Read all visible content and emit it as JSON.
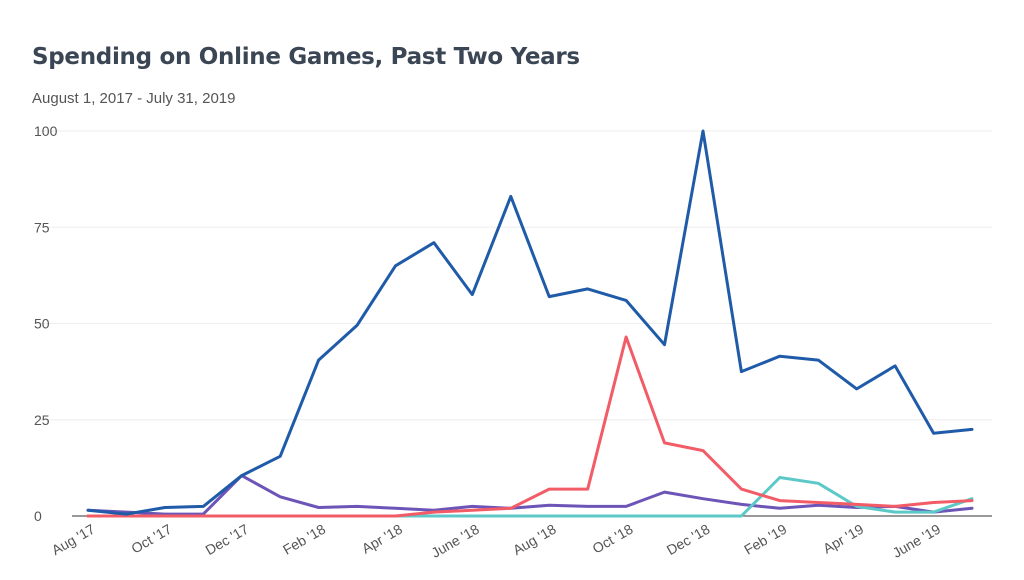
{
  "title": "Spending on Online Games, Past Two Years",
  "subtitle": "August 1, 2017 - July 31, 2019",
  "colors": {
    "series1": "#1f5ba8",
    "series2": "#f25c67",
    "series3": "#5cc8c8",
    "series4": "#6d55b8",
    "grid": "#eeeeee",
    "axis": "#333333"
  },
  "chart_data": {
    "type": "line",
    "x": [
      "Aug '17",
      "Sep '17",
      "Oct '17",
      "Nov '17",
      "Dec '17",
      "Jan '18",
      "Feb '18",
      "Mar '18",
      "Apr '18",
      "May '18",
      "June '18",
      "July '18",
      "Aug '18",
      "Sep '18",
      "Oct '18",
      "Nov '18",
      "Dec '18",
      "Jan '19",
      "Feb '19",
      "Mar '19",
      "Apr '19",
      "May '19",
      "June '19",
      "July '19"
    ],
    "x_tick_labels": [
      "Aug '17",
      "",
      "Oct '17",
      "",
      "Dec '17",
      "",
      "Feb '18",
      "",
      "Apr '18",
      "",
      "June '18",
      "",
      "Aug '18",
      "",
      "Oct '18",
      "",
      "Dec '18",
      "",
      "Feb '19",
      "",
      "Apr '19",
      "",
      "June '19",
      ""
    ],
    "ylim": [
      0,
      100
    ],
    "yticks": [
      0,
      25,
      50,
      75,
      100
    ],
    "grid": true,
    "legend": "none",
    "series": [
      {
        "values": [
          1.5,
          0.5,
          2.2,
          2.5,
          10.5,
          15.5,
          40.5,
          49.5,
          65,
          71,
          57.5,
          83,
          57,
          59,
          56,
          44.5,
          100,
          37.5,
          41.5,
          40.5,
          33,
          39,
          21.5,
          22.5
        ]
      },
      {
        "values": [
          0,
          0,
          0,
          0,
          0,
          0,
          0,
          0,
          0,
          1,
          1.5,
          2,
          7,
          7,
          46.5,
          19,
          17,
          7,
          4,
          3.5,
          3,
          2.5,
          3.5,
          4
        ]
      },
      {
        "values": [
          0,
          0,
          0,
          0,
          0,
          0,
          0,
          0,
          0,
          0,
          0,
          0,
          0,
          0,
          0,
          0,
          0,
          0,
          10,
          8.5,
          2.5,
          1,
          1,
          4.5
        ]
      },
      {
        "values": [
          1.5,
          1,
          0.5,
          0.5,
          10.5,
          5,
          2.2,
          2.5,
          2,
          1.5,
          2.5,
          2,
          2.8,
          2.5,
          2.5,
          6.2,
          4.5,
          3,
          2,
          2.8,
          2.2,
          2.5,
          1,
          2
        ]
      }
    ]
  }
}
